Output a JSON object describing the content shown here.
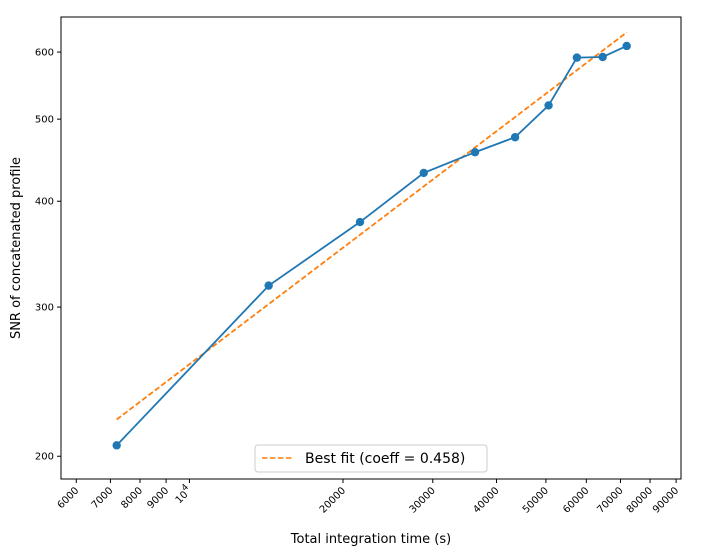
{
  "chart_data": {
    "type": "line",
    "xlabel": "Total integration time (s)",
    "ylabel": "SNR of concatenated profile",
    "x_scale": "log",
    "y_scale": "log",
    "xlim": [
      5600,
      92000
    ],
    "ylim": [
      188,
      660
    ],
    "x_ticks": [
      {
        "value": 6000,
        "label": "6000"
      },
      {
        "value": 7000,
        "label": "7000"
      },
      {
        "value": 8000,
        "label": "8000"
      },
      {
        "value": 9000,
        "label": "9000"
      },
      {
        "value": 10000,
        "label": "10^4"
      },
      {
        "value": 20000,
        "label": "20000"
      },
      {
        "value": 30000,
        "label": "30000"
      },
      {
        "value": 40000,
        "label": "40000"
      },
      {
        "value": 50000,
        "label": "50000"
      },
      {
        "value": 60000,
        "label": "60000"
      },
      {
        "value": 70000,
        "label": "70000"
      },
      {
        "value": 80000,
        "label": "80000"
      },
      {
        "value": 90000,
        "label": "90000"
      }
    ],
    "y_ticks": [
      {
        "value": 200,
        "label": "200"
      },
      {
        "value": 300,
        "label": "300"
      },
      {
        "value": 400,
        "label": "400"
      },
      {
        "value": 500,
        "label": "500"
      },
      {
        "value": 600,
        "label": "600"
      }
    ],
    "series": [
      {
        "color": "#1f77b4",
        "style": "solid-with-markers",
        "x": [
          7200,
          14300,
          21600,
          28800,
          36300,
          43500,
          50600,
          57500,
          64600,
          72000
        ],
        "y": [
          206,
          318,
          378,
          432,
          457,
          476,
          519,
          591,
          592,
          610
        ]
      },
      {
        "name": "Best fit (coeff = 0.458)",
        "color": "#ff7f0e",
        "style": "dashed",
        "x": [
          7200,
          72000
        ],
        "y": [
          221,
          633
        ]
      }
    ],
    "legend": {
      "placement": "bottom-center",
      "entries": [
        "Best fit (coeff = 0.458)"
      ]
    }
  }
}
